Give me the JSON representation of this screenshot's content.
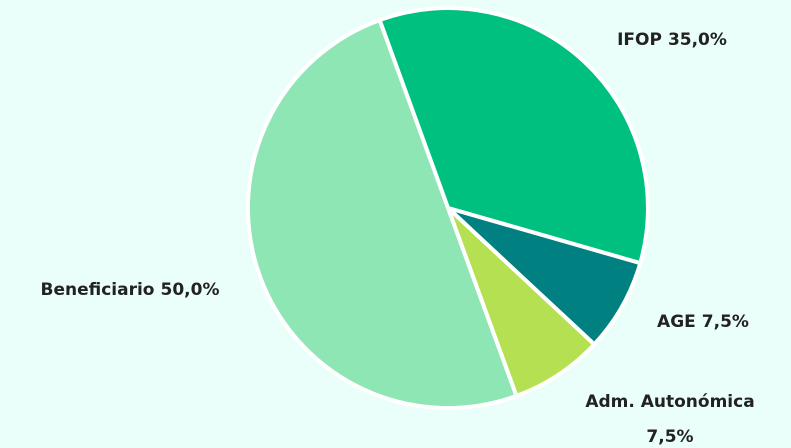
{
  "chart_data": {
    "type": "pie",
    "categories": [
      "IFOP",
      "AGE",
      "Adm. Autonómica",
      "Beneficiario"
    ],
    "values": [
      35,
      7.5,
      7.5,
      50
    ],
    "value_labels": [
      "35,0%",
      "7,5%",
      "7,5%",
      "50,0%"
    ],
    "colors": [
      "#00c07f",
      "#008080",
      "#b5e051",
      "#8ee6b4"
    ]
  }
}
